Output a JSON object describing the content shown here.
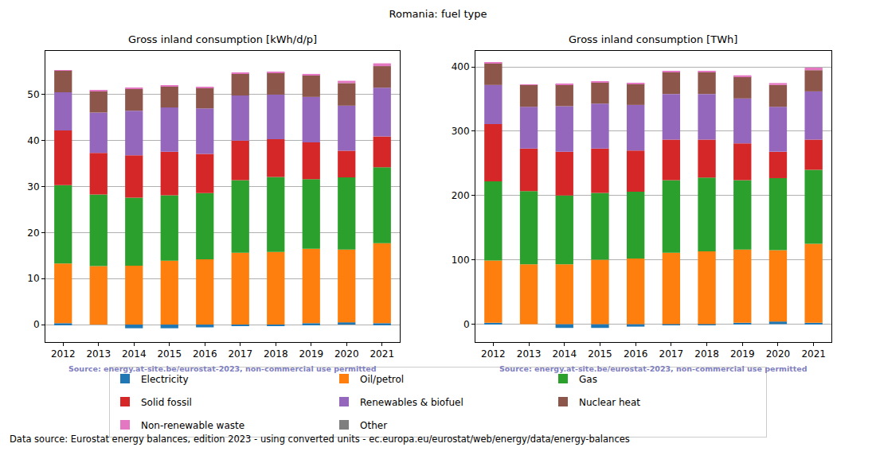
{
  "title": "Romania: fuel type",
  "footer": "Data source: Eurostat energy balances, edition 2023 - using converted units - ec.europa.eu/eurostat/web/energy/data/energy-balances",
  "chart_data": [
    {
      "type": "bar",
      "title": "Gross inland consumption [kWh/d/p]",
      "source": "Source: energy.at-site.be/eurostat-2023, non-commercial use permitted",
      "categories": [
        "2012",
        "2013",
        "2014",
        "2015",
        "2016",
        "2017",
        "2018",
        "2019",
        "2020",
        "2021"
      ],
      "series": [
        {
          "name": "Electricity",
          "color": "#1f77b4",
          "values": [
            0.3,
            0.0,
            -0.8,
            -0.8,
            -0.6,
            -0.3,
            -0.3,
            0.3,
            0.5,
            0.3
          ]
        },
        {
          "name": "Oil/petrol",
          "color": "#ff7f0e",
          "values": [
            13.0,
            12.7,
            12.8,
            13.9,
            14.2,
            15.6,
            15.8,
            16.2,
            15.8,
            17.4
          ]
        },
        {
          "name": "Gas",
          "color": "#2ca02c",
          "values": [
            17.0,
            15.6,
            14.8,
            14.2,
            14.4,
            15.8,
            16.3,
            15.1,
            15.7,
            16.5
          ]
        },
        {
          "name": "Solid fossil",
          "color": "#d62728",
          "values": [
            11.9,
            9.0,
            9.2,
            9.5,
            8.5,
            8.6,
            8.2,
            8.0,
            5.8,
            6.7
          ]
        },
        {
          "name": "Renewables & biofuel",
          "color": "#9467bd",
          "values": [
            8.3,
            8.8,
            9.7,
            9.6,
            9.9,
            9.8,
            9.7,
            9.9,
            9.8,
            10.6
          ]
        },
        {
          "name": "Nuclear heat",
          "color": "#8c564b",
          "values": [
            4.7,
            4.7,
            4.7,
            4.6,
            4.5,
            4.7,
            4.8,
            4.7,
            4.9,
            4.7
          ]
        },
        {
          "name": "Non-renewable waste",
          "color": "#e377c2",
          "values": [
            0.1,
            0.1,
            0.2,
            0.2,
            0.2,
            0.2,
            0.2,
            0.3,
            0.5,
            0.6
          ]
        },
        {
          "name": "Other",
          "color": "#7f7f7f",
          "values": [
            0,
            0,
            0,
            0,
            0,
            0,
            0,
            0,
            0,
            0
          ]
        }
      ],
      "ylim": [
        -3.8,
        59.5
      ],
      "yticks": [
        0,
        10,
        20,
        30,
        40,
        50
      ],
      "grid": true,
      "stacked": true,
      "legend": "bottom"
    },
    {
      "type": "bar",
      "title": "Gross inland consumption [TWh]",
      "source": "Source: energy.at-site.be/eurostat-2023, non-commercial use permitted",
      "categories": [
        "2012",
        "2013",
        "2014",
        "2015",
        "2016",
        "2017",
        "2018",
        "2019",
        "2020",
        "2021"
      ],
      "series": [
        {
          "name": "Electricity",
          "color": "#1f77b4",
          "values": [
            2,
            0,
            -6,
            -6,
            -4,
            -2,
            -2,
            2,
            4,
            2
          ]
        },
        {
          "name": "Oil/petrol",
          "color": "#ff7f0e",
          "values": [
            97,
            93,
            93,
            100,
            102,
            111,
            113,
            114,
            111,
            123
          ]
        },
        {
          "name": "Gas",
          "color": "#2ca02c",
          "values": [
            123,
            114,
            107,
            104,
            104,
            113,
            115,
            108,
            112,
            115
          ]
        },
        {
          "name": "Solid fossil",
          "color": "#d62728",
          "values": [
            89,
            66,
            68,
            69,
            64,
            63,
            59,
            57,
            41,
            47
          ]
        },
        {
          "name": "Renewables & biofuel",
          "color": "#9467bd",
          "values": [
            61,
            65,
            71,
            70,
            71,
            71,
            71,
            70,
            70,
            75
          ]
        },
        {
          "name": "Nuclear heat",
          "color": "#8c564b",
          "values": [
            34,
            34,
            34,
            33,
            33,
            34,
            34,
            34,
            34,
            33
          ]
        },
        {
          "name": "Non-renewable waste",
          "color": "#e377c2",
          "values": [
            1,
            1,
            1,
            1,
            1,
            1,
            1,
            2,
            3,
            4
          ]
        },
        {
          "name": "Other",
          "color": "#7f7f7f",
          "values": [
            0,
            0,
            0,
            0,
            0,
            0,
            0,
            0,
            0,
            0
          ]
        }
      ],
      "ylim": [
        -28,
        425
      ],
      "yticks": [
        0,
        100,
        200,
        300,
        400
      ],
      "grid": true,
      "stacked": true
    }
  ]
}
